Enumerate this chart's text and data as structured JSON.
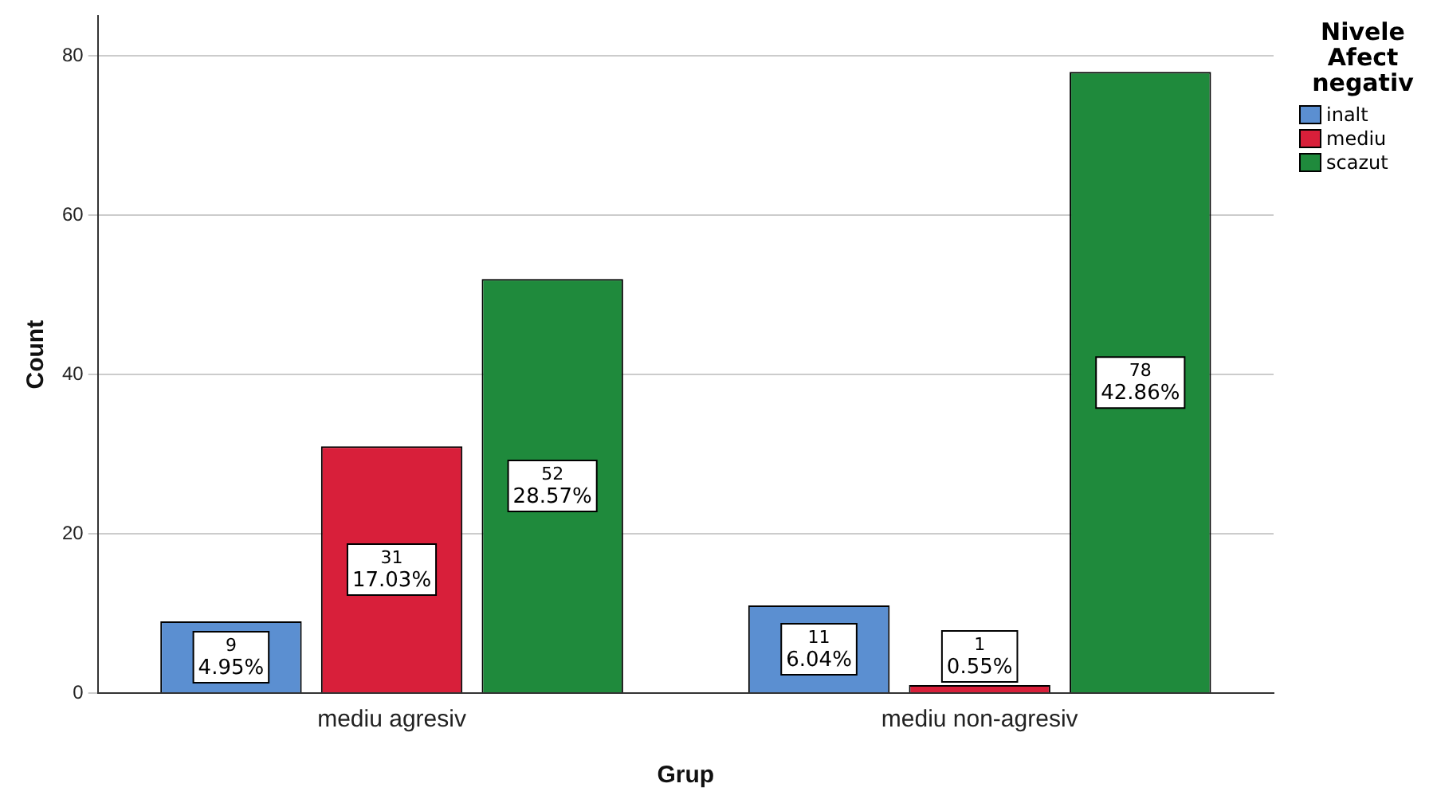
{
  "chart_data": {
    "type": "bar",
    "xlabel": "Grup",
    "ylabel": "Count",
    "legend_title": "Nivele Afect negativ",
    "categories": [
      "mediu agresiv",
      "mediu non-agresiv"
    ],
    "series": [
      {
        "name": "inalt",
        "color": "#5b8fd1",
        "values": [
          9,
          11
        ],
        "value_labels": [
          "9\n4.95%",
          "11\n6.04%"
        ]
      },
      {
        "name": "mediu",
        "color": "#d81f3a",
        "values": [
          31,
          1
        ],
        "value_labels": [
          "31\n17.03%",
          "1\n0.55%"
        ]
      },
      {
        "name": "scazut",
        "color": "#1f8a3c",
        "values": [
          52,
          78
        ],
        "value_labels": [
          "52\n28.57%",
          "78\n42.86%"
        ]
      }
    ],
    "ylim": [
      0,
      85
    ],
    "yticks": [
      0,
      20,
      40,
      60,
      80
    ],
    "grid": "y",
    "legend": "top right"
  }
}
